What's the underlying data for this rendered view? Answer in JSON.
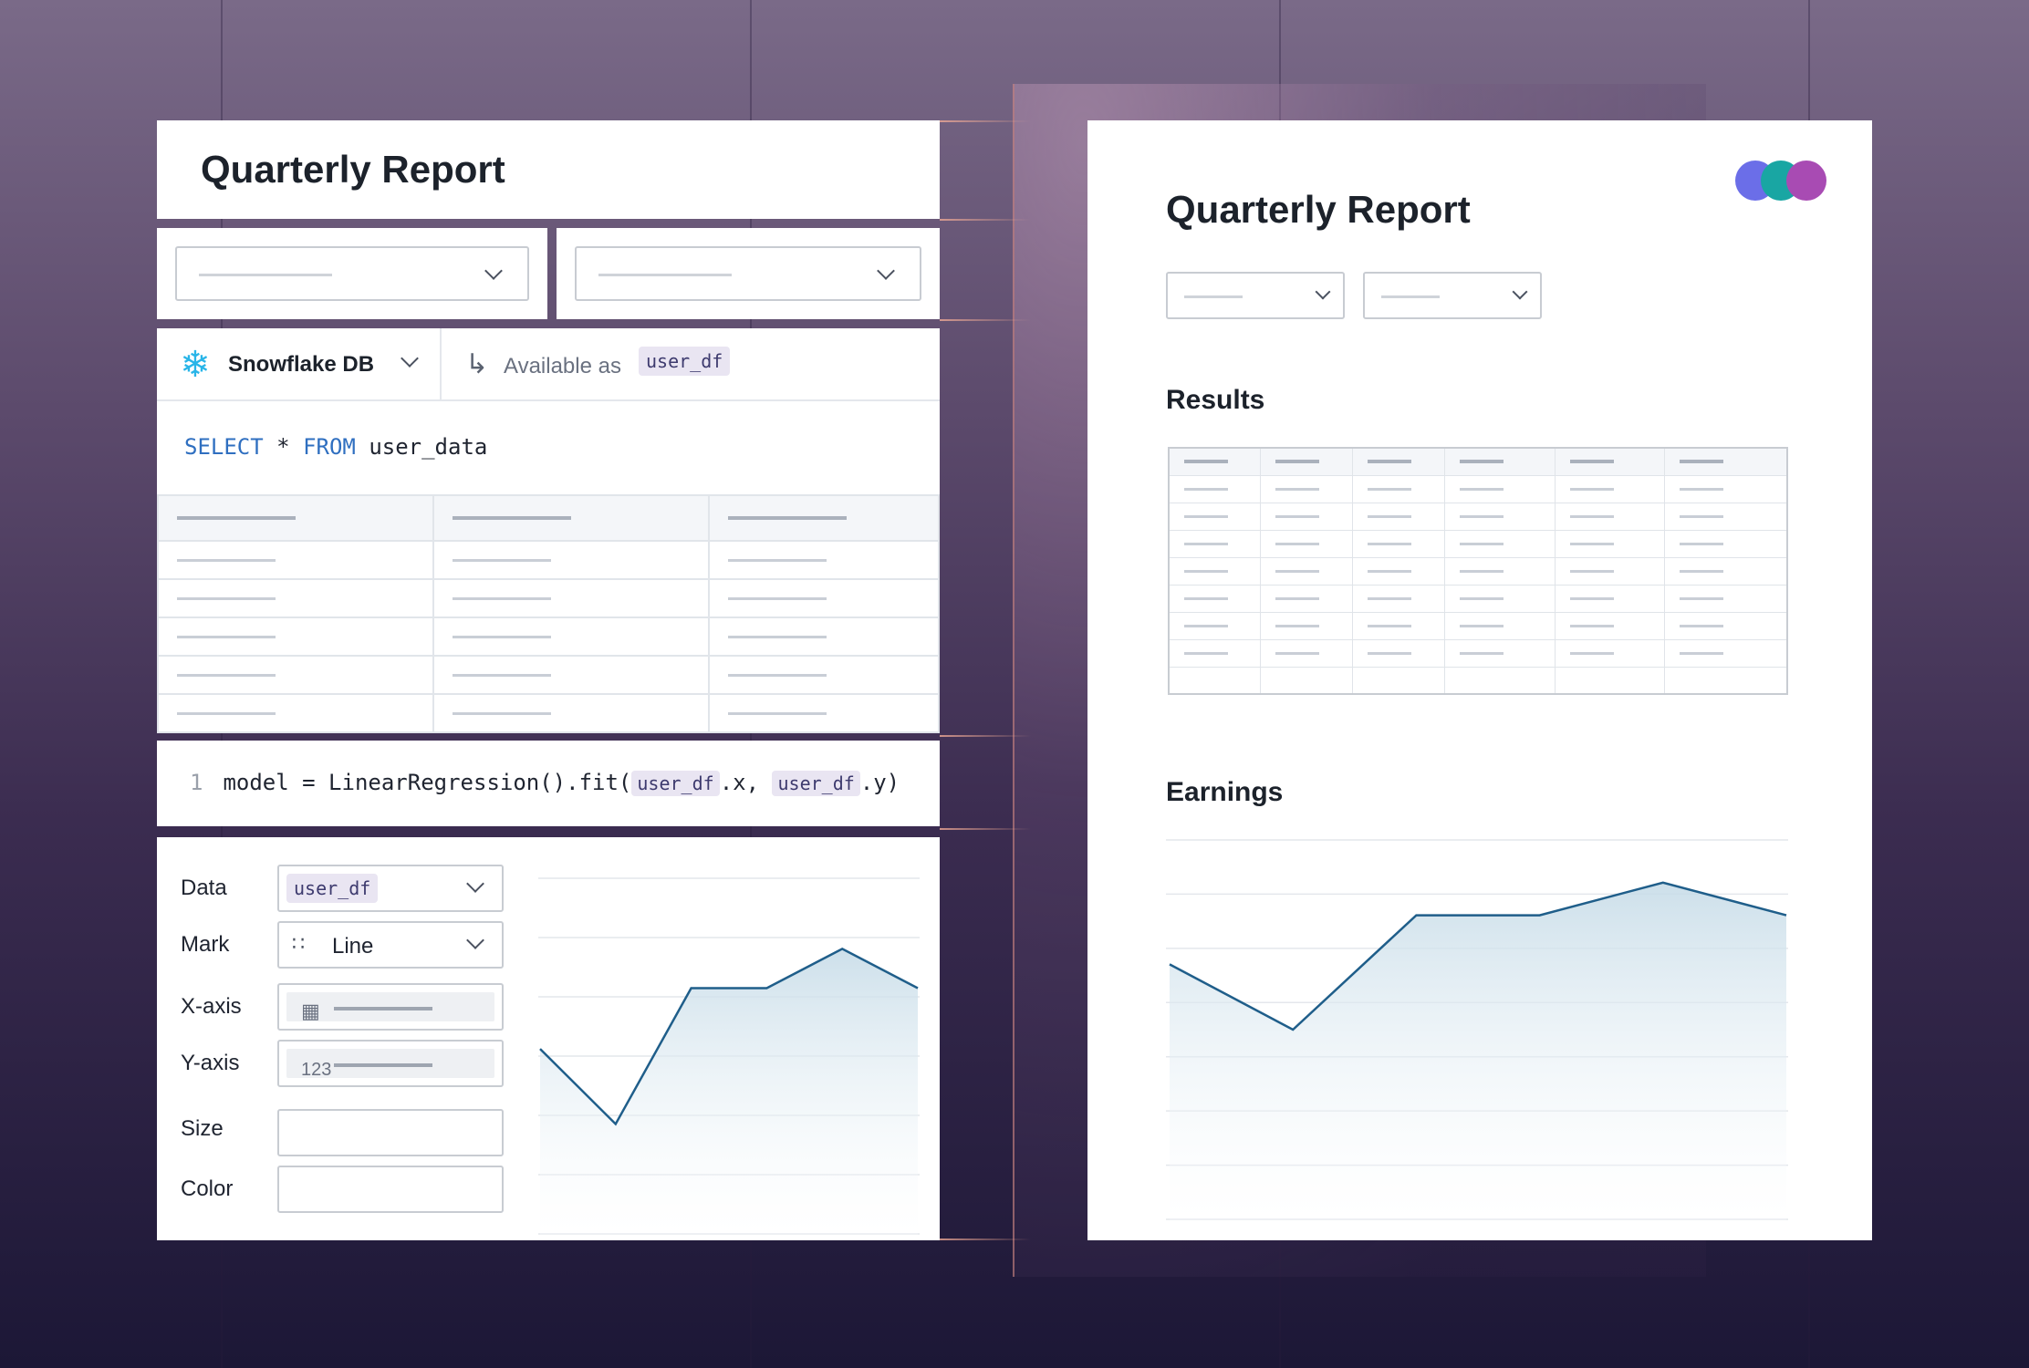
{
  "left_panel": {
    "title": "Quarterly Report",
    "sql_cell": {
      "db_name": "Snowflake DB",
      "available_as_label": "Available as",
      "dataframe": "user_df",
      "query": {
        "select": "SELECT",
        "star": "*",
        "from": "FROM",
        "table": "user_data"
      },
      "table_rows": 5,
      "table_cols": 3
    },
    "python_cell": {
      "line_number": "1",
      "code_prefix": "model = LinearRegression().fit(",
      "arg1": "user_df",
      "mid": ".x, ",
      "arg2": "user_df",
      "suffix": ".y)"
    },
    "chart_config": {
      "labels": {
        "data": "Data",
        "mark": "Mark",
        "x_axis": "X-axis",
        "y_axis": "Y-axis",
        "size": "Size",
        "color": "Color"
      },
      "data_value": "user_df",
      "mark_value": "Line",
      "y_icon_text": "123",
      "icons": {
        "mark": "scatter-chart-icon",
        "x_axis": "calendar-icon",
        "y_axis": "number-icon"
      }
    },
    "chart_data": {
      "type": "area",
      "x": [
        0,
        1,
        2,
        3,
        4,
        5
      ],
      "values": [
        5.2,
        3.1,
        6.9,
        6.9,
        8.0,
        6.9
      ],
      "ylim": [
        0,
        10
      ]
    }
  },
  "report": {
    "title": "Quarterly Report",
    "results_title": "Results",
    "earnings_title": "Earnings",
    "results_cols": 6,
    "results_rows": 8,
    "logo_colors": [
      "#6b6ee8",
      "#19a6a3",
      "#a84bb3"
    ],
    "chart_data": {
      "type": "area",
      "x": [
        0,
        1,
        2,
        3,
        4,
        5
      ],
      "values": [
        4.7,
        3.5,
        5.6,
        5.6,
        6.2,
        5.6
      ],
      "ylim": [
        0,
        7
      ]
    }
  },
  "colors": {
    "accent_blue": "#1f5e8a",
    "keyword": "#2f6fc0",
    "snowflake": "#29b5e8",
    "pill_bg": "#e9e5f2"
  }
}
